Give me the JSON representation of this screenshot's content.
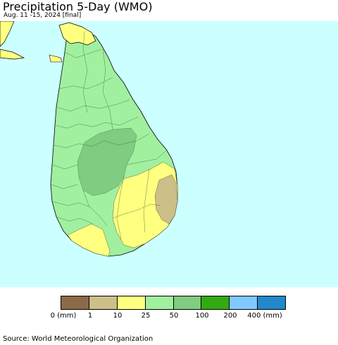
{
  "header": {
    "title": "Precipitation 5-Day (WMO)",
    "subtitle": "Aug. 11 -15, 2024 [final]"
  },
  "map": {
    "region": "Sri Lanka",
    "ocean_color": "#ccffff",
    "land_outside_color": "#ffff80"
  },
  "legend": {
    "colors": [
      "#8b6a4a",
      "#ccbf88",
      "#ffff80",
      "#a0f0a0",
      "#80cc80",
      "#33aa11",
      "#80c8ff",
      "#2288cc"
    ],
    "labels": [
      "0 (mm)",
      "1",
      "10",
      "25",
      "50",
      "100",
      "200",
      "400 (mm)"
    ]
  },
  "footer": {
    "source": "Source: World Meteorological Organization"
  }
}
